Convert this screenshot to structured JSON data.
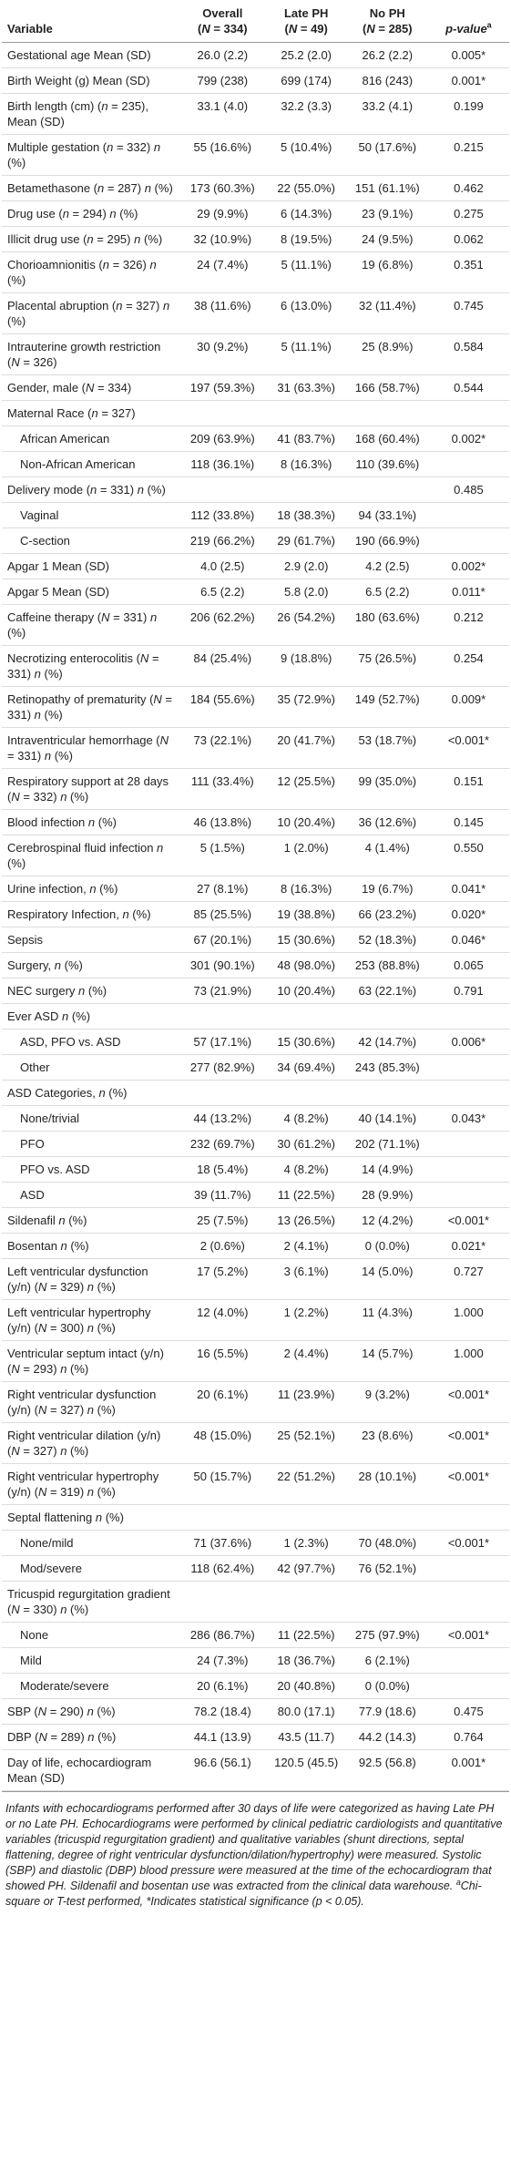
{
  "table": {
    "header": {
      "variable": "Variable",
      "columns": [
        {
          "label": "Overall",
          "n": "(N = 334)"
        },
        {
          "label": "Late PH",
          "n": "(N = 49)"
        },
        {
          "label": "No PH",
          "n": "(N = 285)"
        }
      ],
      "p_value": {
        "label": "p-value",
        "sup": "a"
      }
    },
    "rows": [
      {
        "variable": "Gestational age Mean (SD)",
        "cells": [
          "26.0 (2.2)",
          "25.2 (2.0)",
          "26.2 (2.2)",
          "0.005*"
        ]
      },
      {
        "variable": "Birth Weight (g) Mean (SD)",
        "cells": [
          "799 (238)",
          "699 (174)",
          "816 (243)",
          "0.001*"
        ]
      },
      {
        "variable": "Birth length (cm) (n = 235), Mean (SD)",
        "cells": [
          "33.1 (4.0)",
          "32.2 (3.3)",
          "33.2 (4.1)",
          "0.199"
        ]
      },
      {
        "variable": "Multiple gestation (n = 332) n (%)",
        "cells": [
          "55 (16.6%)",
          "5 (10.4%)",
          "50 (17.6%)",
          "0.215"
        ]
      },
      {
        "variable": "Betamethasone (n = 287) n (%)",
        "cells": [
          "173 (60.3%)",
          "22 (55.0%)",
          "151 (61.1%)",
          "0.462"
        ]
      },
      {
        "variable": "Drug use (n = 294) n (%)",
        "cells": [
          "29 (9.9%)",
          "6 (14.3%)",
          "23 (9.1%)",
          "0.275"
        ]
      },
      {
        "variable": "Illicit drug use (n = 295) n (%)",
        "cells": [
          "32 (10.9%)",
          "8 (19.5%)",
          "24 (9.5%)",
          "0.062"
        ]
      },
      {
        "variable": "Chorioamnionitis (n = 326) n (%)",
        "cells": [
          "24 (7.4%)",
          "5 (11.1%)",
          "19 (6.8%)",
          "0.351"
        ]
      },
      {
        "variable": "Placental abruption (n = 327) n (%)",
        "cells": [
          "38 (11.6%)",
          "6 (13.0%)",
          "32 (11.4%)",
          "0.745"
        ]
      },
      {
        "variable": "Intrauterine growth restriction (N = 326)",
        "cells": [
          "30 (9.2%)",
          "5 (11.1%)",
          "25 (8.9%)",
          "0.584"
        ]
      },
      {
        "variable": "Gender, male (N = 334)",
        "cells": [
          "197 (59.3%)",
          "31 (63.3%)",
          "166 (58.7%)",
          "0.544"
        ]
      },
      {
        "variable": "Maternal Race (n = 327)",
        "cells": [
          null,
          null,
          null,
          null
        ]
      },
      {
        "variable": "African American",
        "indent": true,
        "cells": [
          "209 (63.9%)",
          "41 (83.7%)",
          "168 (60.4%)",
          "0.002*"
        ]
      },
      {
        "variable": "Non-African American",
        "indent": true,
        "cells": [
          "118 (36.1%)",
          "8 (16.3%)",
          "110 (39.6%)",
          null
        ]
      },
      {
        "variable": "Delivery mode (n = 331) n (%)",
        "cells": [
          null,
          null,
          null,
          "0.485"
        ]
      },
      {
        "variable": "Vaginal",
        "indent": true,
        "cells": [
          "112 (33.8%)",
          "18 (38.3%)",
          "94 (33.1%)",
          null
        ]
      },
      {
        "variable": "C-section",
        "indent": true,
        "cells": [
          "219 (66.2%)",
          "29 (61.7%)",
          "190 (66.9%)",
          null
        ]
      },
      {
        "variable": "Apgar 1 Mean (SD)",
        "cells": [
          "4.0 (2.5)",
          "2.9 (2.0)",
          "4.2 (2.5)",
          "0.002*"
        ]
      },
      {
        "variable": "Apgar 5 Mean (SD)",
        "cells": [
          "6.5 (2.2)",
          "5.8 (2.0)",
          "6.5 (2.2)",
          "0.011*"
        ]
      },
      {
        "variable": "Caffeine therapy (N = 331) n (%)",
        "cells": [
          "206 (62.2%)",
          "26 (54.2%)",
          "180 (63.6%)",
          "0.212"
        ]
      },
      {
        "variable": "Necrotizing enterocolitis (N = 331) n (%)",
        "cells": [
          "84 (25.4%)",
          "9 (18.8%)",
          "75 (26.5%)",
          "0.254"
        ]
      },
      {
        "variable": "Retinopathy of prematurity (N = 331) n (%)",
        "cells": [
          "184 (55.6%)",
          "35 (72.9%)",
          "149 (52.7%)",
          "0.009*"
        ]
      },
      {
        "variable": "Intraventricular hemorrhage (N = 331) n (%)",
        "cells": [
          "73 (22.1%)",
          "20 (41.7%)",
          "53 (18.7%)",
          "<0.001*"
        ]
      },
      {
        "variable": "Respiratory support at 28 days (N = 332) n (%)",
        "cells": [
          "111 (33.4%)",
          "12 (25.5%)",
          "99 (35.0%)",
          "0.151"
        ]
      },
      {
        "variable": "Blood infection n (%)",
        "cells": [
          "46 (13.8%)",
          "10 (20.4%)",
          "36 (12.6%)",
          "0.145"
        ]
      },
      {
        "variable": "Cerebrospinal fluid infection n (%)",
        "cells": [
          "5 (1.5%)",
          "1 (2.0%)",
          "4 (1.4%)",
          "0.550"
        ]
      },
      {
        "variable": "Urine infection, n (%)",
        "cells": [
          "27 (8.1%)",
          "8 (16.3%)",
          "19 (6.7%)",
          "0.041*"
        ]
      },
      {
        "variable": "Respiratory Infection, n (%)",
        "cells": [
          "85 (25.5%)",
          "19 (38.8%)",
          "66 (23.2%)",
          "0.020*"
        ]
      },
      {
        "variable": "Sepsis",
        "cells": [
          "67 (20.1%)",
          "15 (30.6%)",
          "52 (18.3%)",
          "0.046*"
        ]
      },
      {
        "variable": "Surgery, n (%)",
        "cells": [
          "301 (90.1%)",
          "48 (98.0%)",
          "253 (88.8%)",
          "0.065"
        ]
      },
      {
        "variable": "NEC surgery n (%)",
        "cells": [
          "73 (21.9%)",
          "10 (20.4%)",
          "63 (22.1%)",
          "0.791"
        ]
      },
      {
        "variable": "Ever ASD n (%)",
        "cells": [
          null,
          null,
          null,
          null
        ]
      },
      {
        "variable": "ASD, PFO vs. ASD",
        "indent": true,
        "cells": [
          "57 (17.1%)",
          "15 (30.6%)",
          "42 (14.7%)",
          "0.006*"
        ]
      },
      {
        "variable": "Other",
        "indent": true,
        "cells": [
          "277 (82.9%)",
          "34 (69.4%)",
          "243 (85.3%)",
          null
        ]
      },
      {
        "variable": "ASD Categories, n (%)",
        "cells": [
          null,
          null,
          null,
          null
        ]
      },
      {
        "variable": "None/trivial",
        "indent": true,
        "cells": [
          "44 (13.2%)",
          "4 (8.2%)",
          "40 (14.1%)",
          "0.043*"
        ]
      },
      {
        "variable": "PFO",
        "indent": true,
        "cells": [
          "232 (69.7%)",
          "30 (61.2%)",
          "202 (71.1%)",
          null
        ]
      },
      {
        "variable": "PFO vs. ASD",
        "indent": true,
        "cells": [
          "18 (5.4%)",
          "4 (8.2%)",
          "14 (4.9%)",
          null
        ]
      },
      {
        "variable": "ASD",
        "indent": true,
        "cells": [
          "39 (11.7%)",
          "11 (22.5%)",
          "28 (9.9%)",
          null
        ]
      },
      {
        "variable": "Sildenafil n (%)",
        "cells": [
          "25 (7.5%)",
          "13 (26.5%)",
          "12 (4.2%)",
          "<0.001*"
        ]
      },
      {
        "variable": "Bosentan n (%)",
        "cells": [
          "2 (0.6%)",
          "2 (4.1%)",
          "0 (0.0%)",
          "0.021*"
        ]
      },
      {
        "variable": "Left ventricular dysfunction (y/n) (N = 329) n (%)",
        "cells": [
          "17 (5.2%)",
          "3 (6.1%)",
          "14 (5.0%)",
          "0.727"
        ]
      },
      {
        "variable": "Left ventricular hypertrophy (y/n) (N = 300) n (%)",
        "cells": [
          "12 (4.0%)",
          "1 (2.2%)",
          "11 (4.3%)",
          "1.000"
        ]
      },
      {
        "variable": "Ventricular septum intact (y/n) (N = 293) n (%)",
        "cells": [
          "16 (5.5%)",
          "2 (4.4%)",
          "14 (5.7%)",
          "1.000"
        ]
      },
      {
        "variable": "Right ventricular dysfunction (y/n) (N = 327) n (%)",
        "cells": [
          "20 (6.1%)",
          "11 (23.9%)",
          "9 (3.2%)",
          "<0.001*"
        ]
      },
      {
        "variable": "Right ventricular dilation (y/n) (N = 327) n (%)",
        "cells": [
          "48 (15.0%)",
          "25 (52.1%)",
          "23 (8.6%)",
          "<0.001*"
        ]
      },
      {
        "variable": "Right ventricular hypertrophy (y/n) (N = 319) n (%)",
        "cells": [
          "50 (15.7%)",
          "22 (51.2%)",
          "28 (10.1%)",
          "<0.001*"
        ]
      },
      {
        "variable": "Septal flattening n (%)",
        "cells": [
          null,
          null,
          null,
          null
        ]
      },
      {
        "variable": "None/mild",
        "indent": true,
        "cells": [
          "71 (37.6%)",
          "1 (2.3%)",
          "70 (48.0%)",
          "<0.001*"
        ]
      },
      {
        "variable": "Mod/severe",
        "indent": true,
        "cells": [
          "118 (62.4%)",
          "42 (97.7%)",
          "76 (52.1%)",
          null
        ]
      },
      {
        "variable": "Tricuspid regurgitation gradient (N = 330) n (%)",
        "cells": [
          null,
          null,
          null,
          null
        ]
      },
      {
        "variable": "None",
        "indent": true,
        "cells": [
          "286 (86.7%)",
          "11 (22.5%)",
          "275 (97.9%)",
          "<0.001*"
        ]
      },
      {
        "variable": "Mild",
        "indent": true,
        "cells": [
          "24 (7.3%)",
          "18 (36.7%)",
          "6 (2.1%)",
          null
        ]
      },
      {
        "variable": "Moderate/severe",
        "indent": true,
        "cells": [
          "20 (6.1%)",
          "20 (40.8%)",
          "0 (0.0%)",
          null
        ]
      },
      {
        "variable": "SBP (N = 290) n (%)",
        "cells": [
          "78.2 (18.4)",
          "80.0 (17.1)",
          "77.9 (18.6)",
          "0.475"
        ]
      },
      {
        "variable": "DBP (N = 289) n (%)",
        "cells": [
          "44.1 (13.9)",
          "43.5 (11.7)",
          "44.2 (14.3)",
          "0.764"
        ]
      },
      {
        "variable": "Day of life, echocardiogram Mean (SD)",
        "cells": [
          "96.6 (56.1)",
          "120.5 (45.5)",
          "92.5 (56.8)",
          "0.001*"
        ]
      }
    ]
  },
  "footnote": {
    "text": "Infants with echocardiograms performed after 30 days of life were categorized as having Late PH or no Late PH. Echocardiograms were performed by clinical pediatric cardiologists and quantitative variables (tricuspid regurgitation gradient) and qualitative variables (shunt directions, septal flattening, degree of right ventricular dysfunction/dilation/hypertrophy) were measured. Systolic (SBP) and diastolic (DBP) blood pressure were measured at the time of the echocardiogram that showed PH. Sildenafil and bosentan use was extracted from the clinical data warehouse.",
    "note_marker": "a",
    "note": "Chi-square or T-test performed, *Indicates statistical significance (p < 0.05)."
  }
}
